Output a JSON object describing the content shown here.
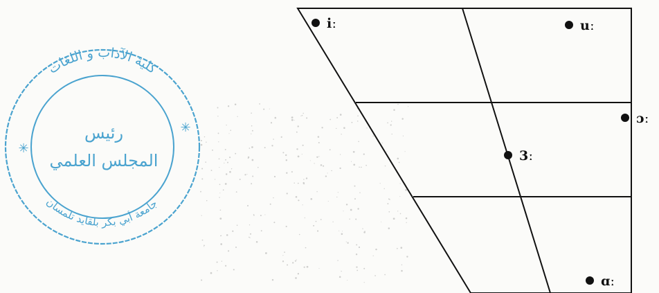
{
  "diagram": {
    "vowels": [
      {
        "id": "i",
        "label": "iː"
      },
      {
        "id": "u",
        "label": "uː"
      },
      {
        "id": "o",
        "label": "ɔː"
      },
      {
        "id": "schwa",
        "label": "3ː"
      },
      {
        "id": "a",
        "label": "ɑː"
      }
    ]
  },
  "stamp": {
    "outer_text": "كلية الآداب و اللغات",
    "center_line1": "رئيس",
    "center_line2": "المجلس العلمي",
    "bottom_text": "جامعة أبي بكر بلقايد تلمسان",
    "color": "#4aa3cf"
  },
  "colors": {
    "ink": "#111111",
    "paper": "#fbfbf9",
    "stamp": "#4aa3cf"
  }
}
